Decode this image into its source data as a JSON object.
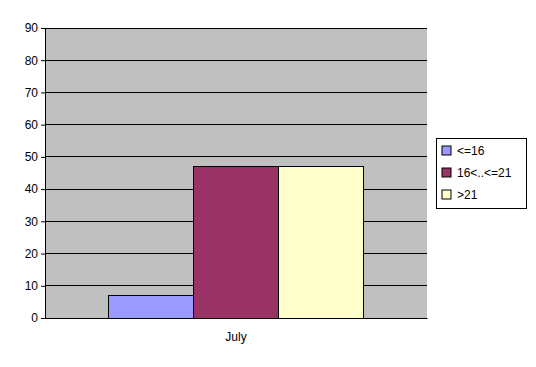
{
  "chart_data": {
    "type": "bar",
    "categories": [
      "July"
    ],
    "series": [
      {
        "name": "<=16",
        "color": "#9999ff",
        "values": [
          7
        ]
      },
      {
        "name": "16<..<=21",
        "color": "#993366",
        "values": [
          47
        ]
      },
      {
        "name": ">21",
        "color": "#ffffcc",
        "values": [
          47
        ]
      }
    ],
    "ylim": [
      0,
      90
    ],
    "yticks": [
      0,
      10,
      20,
      30,
      40,
      50,
      60,
      70,
      80,
      90
    ],
    "grid": true,
    "legend": "right"
  }
}
